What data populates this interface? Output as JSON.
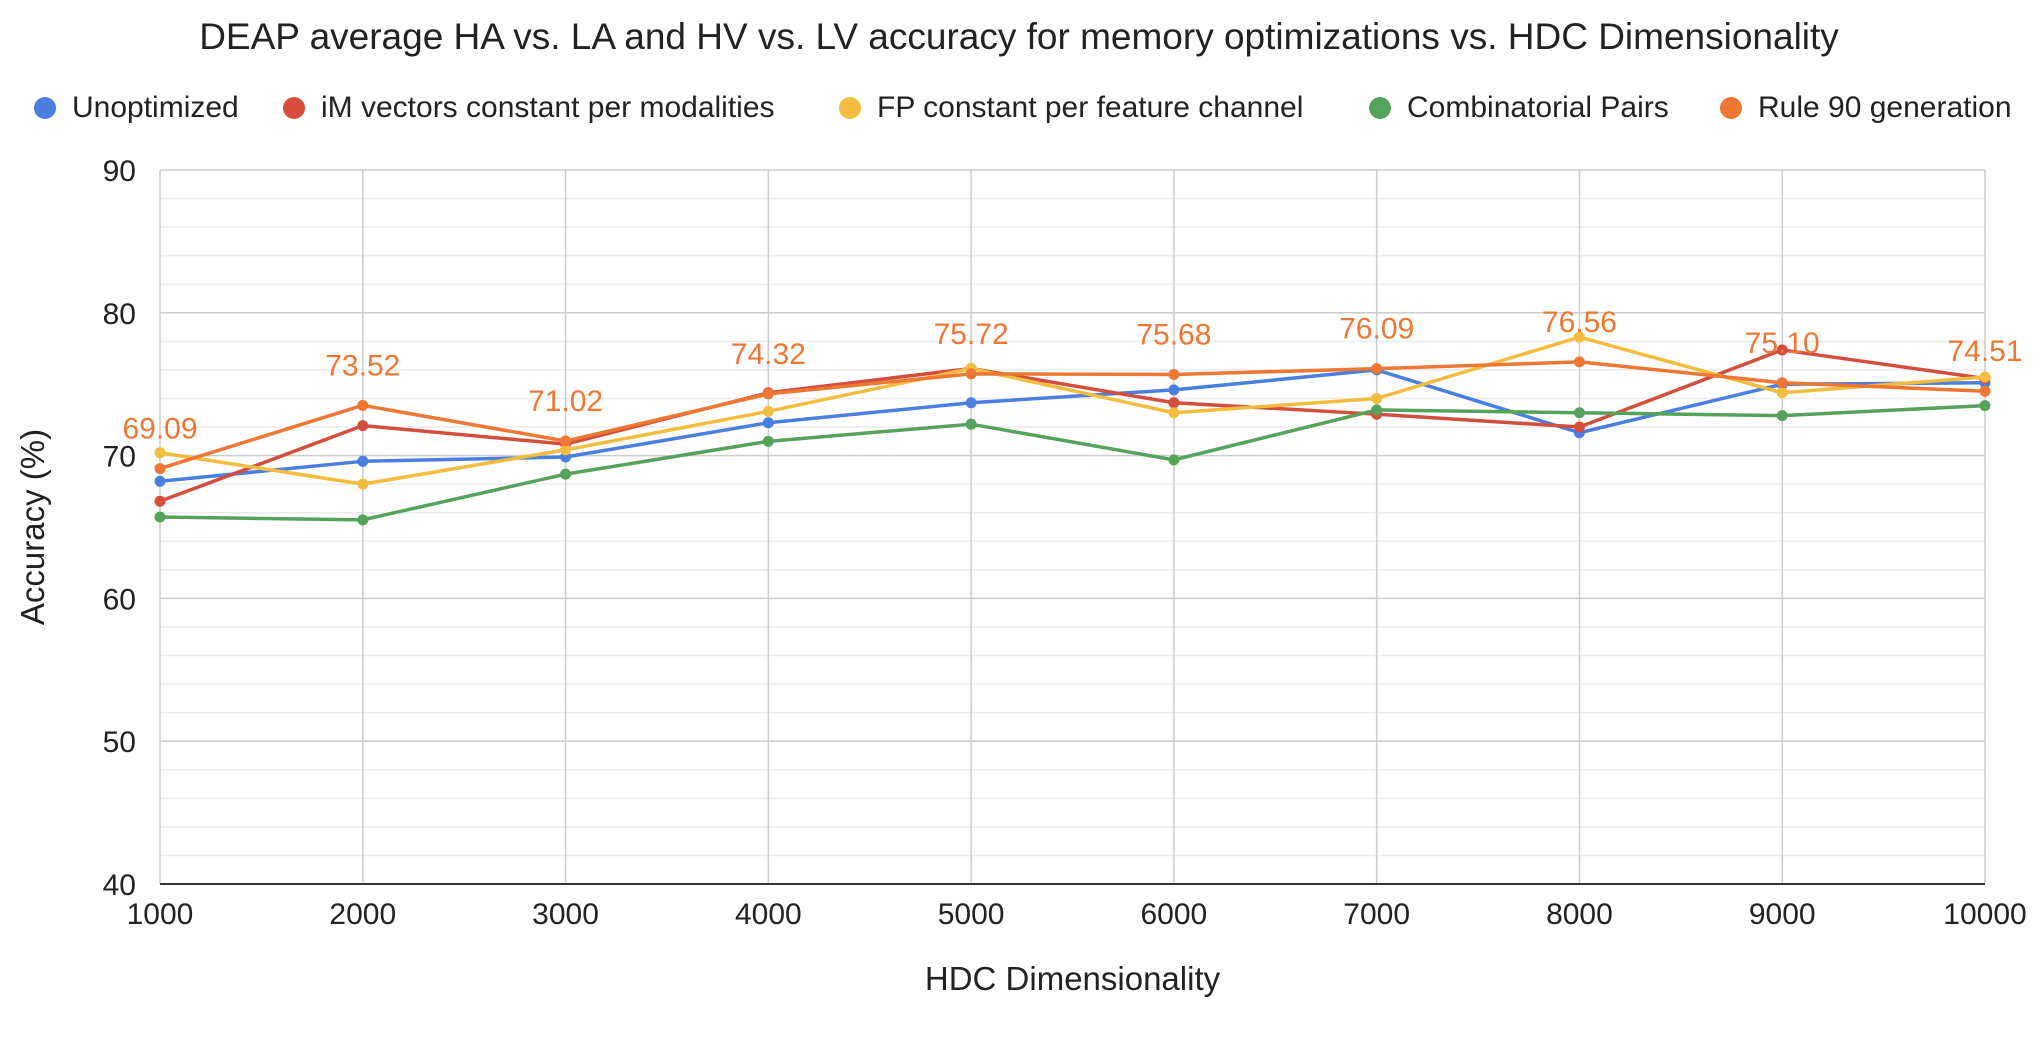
{
  "chart_data": {
    "type": "line",
    "title": "DEAP average HA vs. LA and HV vs. LV accuracy for memory optimizations vs. HDC Dimensionality",
    "xlabel": "HDC Dimensionality",
    "ylabel": "Accuracy (%)",
    "x": [
      1000,
      2000,
      3000,
      4000,
      5000,
      6000,
      7000,
      8000,
      9000,
      10000
    ],
    "xlim": [
      1000,
      10000
    ],
    "ylim": [
      40,
      90
    ],
    "yticks": [
      40,
      50,
      60,
      70,
      80,
      90
    ],
    "xticks": [
      "1000",
      "2000",
      "3000",
      "4000",
      "5000",
      "6000",
      "7000",
      "8000",
      "9000",
      "10000"
    ],
    "yticklabels": [
      "40",
      "50",
      "60",
      "70",
      "80",
      "90"
    ],
    "grid": true,
    "legend_position": "top",
    "series": [
      {
        "name": "Unoptimized",
        "color": "#4a7fe0",
        "values": [
          68.2,
          69.6,
          69.9,
          72.3,
          73.7,
          74.6,
          76.0,
          71.6,
          75.0,
          75.1
        ]
      },
      {
        "name": "iM vectors constant per modalities",
        "color": "#d44d3d",
        "values": [
          66.8,
          72.1,
          70.8,
          74.4,
          76.1,
          73.7,
          72.9,
          72.0,
          77.4,
          75.4
        ]
      },
      {
        "name": "FP constant per feature channel",
        "color": "#f2bd3f",
        "values": [
          70.2,
          68.0,
          70.4,
          73.1,
          76.1,
          73.0,
          74.0,
          78.3,
          74.4,
          75.5
        ]
      },
      {
        "name": "Combinatorial Pairs",
        "color": "#55a35a",
        "values": [
          65.7,
          65.5,
          68.7,
          71.0,
          72.2,
          69.7,
          73.2,
          73.0,
          72.8,
          73.5
        ]
      },
      {
        "name": "Rule 90 generation",
        "color": "#ee7733",
        "values": [
          69.09,
          73.52,
          71.02,
          74.32,
          75.72,
          75.68,
          76.09,
          76.56,
          75.1,
          74.51
        ],
        "data_labels": [
          "69.09",
          "73.52",
          "71.02",
          "74.32",
          "75.72",
          "75.68",
          "76.09",
          "76.56",
          "75.10",
          "74.51"
        ]
      }
    ]
  }
}
